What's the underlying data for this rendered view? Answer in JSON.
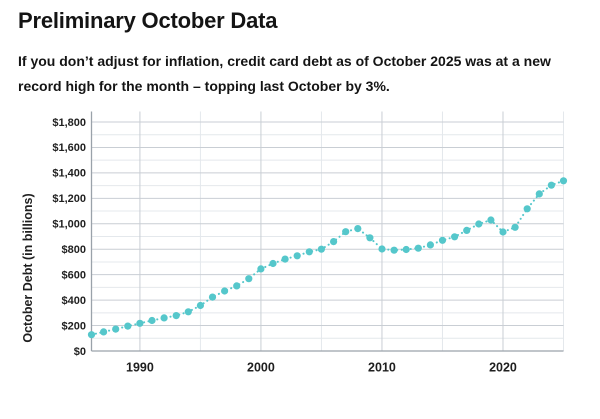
{
  "header": {
    "title": "Preliminary October Data",
    "subtitle": "If you don’t adjust for inflation, credit card debt as of October 2025 was at a new record high for the month – topping last October by 3%."
  },
  "chart_data": {
    "type": "line",
    "title": "Preliminary October Data",
    "xlabel": "",
    "ylabel": "October Debt (in billions)",
    "x": [
      1986,
      1987,
      1988,
      1989,
      1990,
      1991,
      1992,
      1993,
      1994,
      1995,
      1996,
      1997,
      1998,
      1999,
      2000,
      2001,
      2002,
      2003,
      2004,
      2005,
      2006,
      2007,
      2008,
      2009,
      2010,
      2011,
      2012,
      2013,
      2014,
      2015,
      2016,
      2017,
      2018,
      2019,
      2020,
      2021,
      2022,
      2023,
      2024,
      2025
    ],
    "values": [
      128,
      150,
      172,
      196,
      218,
      240,
      260,
      278,
      308,
      358,
      424,
      472,
      512,
      568,
      645,
      688,
      722,
      748,
      780,
      800,
      860,
      938,
      962,
      890,
      802,
      792,
      798,
      808,
      834,
      870,
      898,
      948,
      998,
      1030,
      935,
      972,
      1118,
      1235,
      1303,
      1338
    ],
    "xlim": [
      1986,
      2025
    ],
    "ylim": [
      0,
      1800
    ],
    "grid": true,
    "line_style": "dotted",
    "marker": "circle",
    "legend": "none",
    "y_ticks": [
      {
        "value": 0,
        "label": "$0"
      },
      {
        "value": 200,
        "label": "$200"
      },
      {
        "value": 400,
        "label": "$400"
      },
      {
        "value": 600,
        "label": "$600"
      },
      {
        "value": 800,
        "label": "$800"
      },
      {
        "value": 1000,
        "label": "$1,000"
      },
      {
        "value": 1200,
        "label": "$1,200"
      },
      {
        "value": 1400,
        "label": "$1,400"
      },
      {
        "value": 1600,
        "label": "$1,600"
      },
      {
        "value": 1800,
        "label": "$1,800"
      }
    ],
    "y_minor_step": 100,
    "x_ticks": [
      {
        "value": 1990,
        "label": "1990"
      },
      {
        "value": 2000,
        "label": "2000"
      },
      {
        "value": 2010,
        "label": "2010"
      },
      {
        "value": 2020,
        "label": "2020"
      }
    ],
    "x_minor_step": 5,
    "colors": {
      "accent": "#55C7CB",
      "grid_major": "#c9ced4",
      "grid_minor": "#e4e8ec",
      "axis": "#9aa2aa",
      "text": "#1f1f1f"
    }
  }
}
